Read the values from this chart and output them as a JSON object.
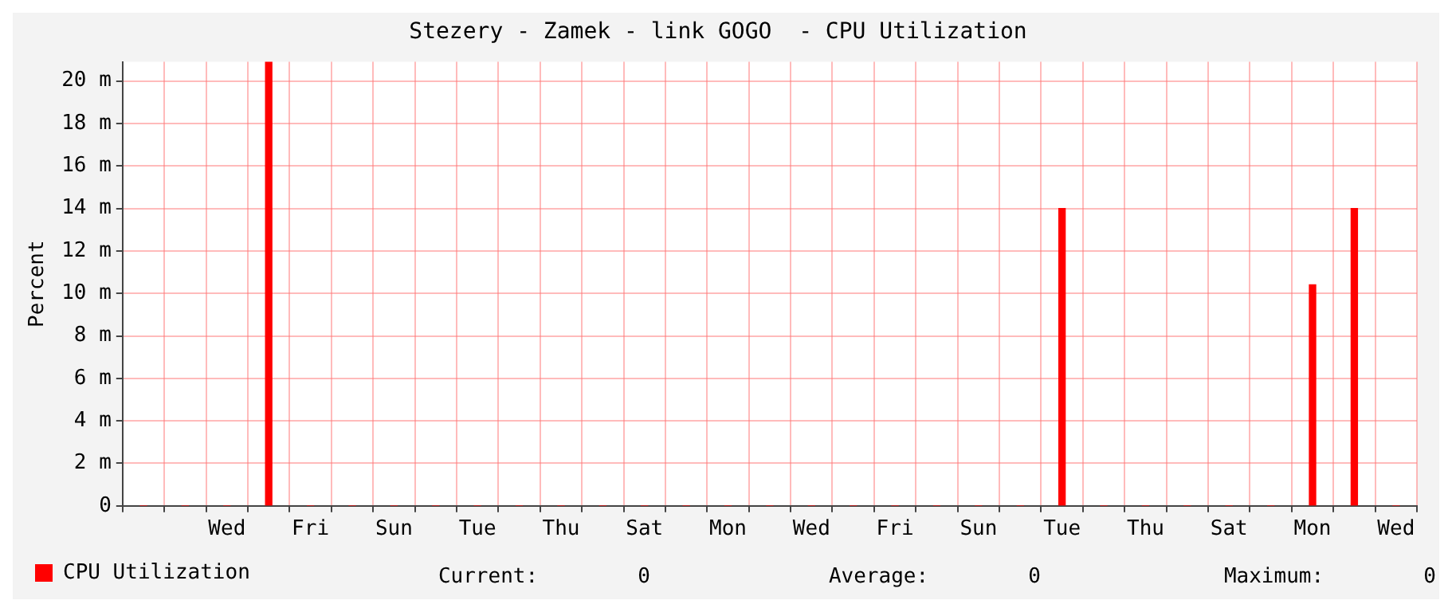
{
  "chart_data": {
    "type": "bar",
    "title": "Stezery - Zamek - link GOGO  - CPU Utilization",
    "ylabel": "Percent",
    "categories": [
      null,
      null,
      "Wed",
      null,
      "Fri",
      null,
      "Sun",
      null,
      "Tue",
      null,
      "Thu",
      null,
      "Sat",
      null,
      "Mon",
      null,
      "Wed",
      null,
      "Fri",
      null,
      "Sun",
      null,
      "Tue",
      null,
      "Thu",
      null,
      "Sat",
      null,
      "Mon",
      null,
      "Wed"
    ],
    "series": [
      {
        "name": "CPU Utilization",
        "color": "#ff0000",
        "values": [
          0,
          0,
          0,
          20.9,
          0,
          0,
          0,
          0,
          0,
          0,
          0,
          0,
          0,
          0,
          0,
          0,
          0,
          0,
          0,
          0,
          0,
          0,
          14,
          0,
          0,
          0,
          0,
          0,
          10.4,
          14,
          0
        ]
      }
    ],
    "ylim": [
      0,
      20.9
    ],
    "yticks": [
      {
        "value": 0,
        "label": "0"
      },
      {
        "value": 2,
        "label": "2 m"
      },
      {
        "value": 4,
        "label": "4 m"
      },
      {
        "value": 6,
        "label": "6 m"
      },
      {
        "value": 8,
        "label": "8 m"
      },
      {
        "value": 10,
        "label": "10 m"
      },
      {
        "value": 12,
        "label": "12 m"
      },
      {
        "value": 14,
        "label": "14 m"
      },
      {
        "value": 16,
        "label": "16 m"
      },
      {
        "value": 18,
        "label": "18 m"
      },
      {
        "value": 20,
        "label": "20 m"
      }
    ],
    "grid": true,
    "legend": "bottom left",
    "annotations": [
      "Current:        0",
      "Average:        0",
      "Maximum:        0"
    ]
  }
}
